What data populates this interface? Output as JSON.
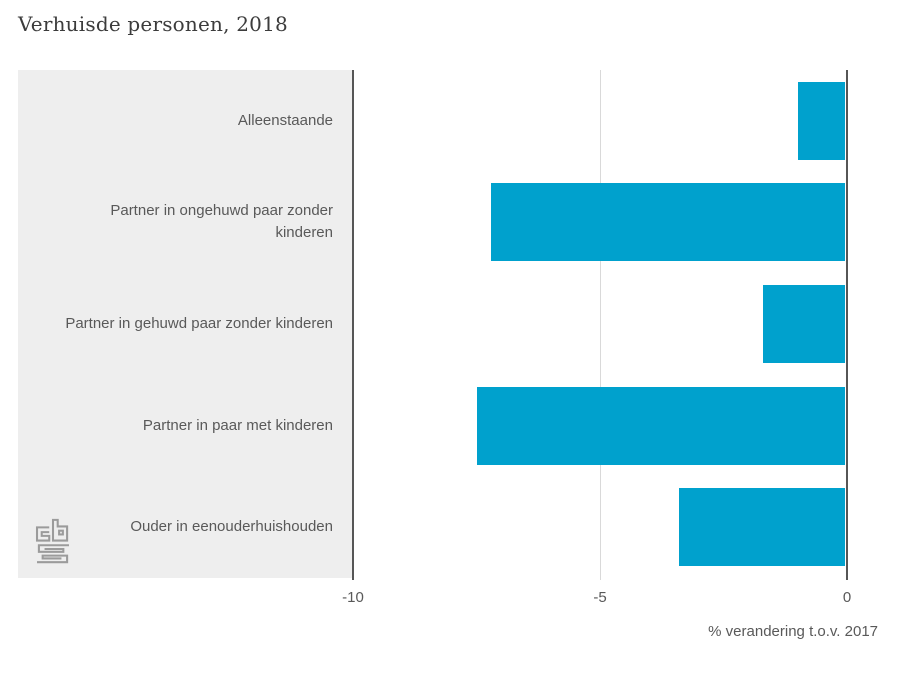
{
  "title": "Verhuisde personen, 2018",
  "colors": {
    "bar": "#00a1cd",
    "panel_background": "#eeeeee",
    "axis_dark": "#565656",
    "grid_light": "#d9d9d9",
    "label_text": "#595959",
    "title_text": "#3c3c3c",
    "logo": "#9b9b9b"
  },
  "logo": {
    "name": "cbs-logo"
  },
  "chart_data": {
    "type": "bar",
    "orientation": "horizontal",
    "title": "Verhuisde personen, 2018",
    "categories": [
      "Alleenstaande",
      "Partner in ongehuwd paar zonder kinderen",
      "Partner in gehuwd paar zonder kinderen",
      "Partner in paar met kinderen",
      "Ouder in eenouderhuishouden"
    ],
    "values": [
      -1.0,
      -7.2,
      -1.7,
      -7.5,
      -3.4
    ],
    "xlabel": "% verandering t.o.v. 2017",
    "xlim": [
      -10,
      0
    ],
    "xticks": [
      -10,
      -5,
      0
    ],
    "xtick_labels": [
      "-10",
      "-5",
      "0"
    ],
    "grid": "vertical gridline at -5, dark axis lines at -10 and 0",
    "legend": "none"
  }
}
